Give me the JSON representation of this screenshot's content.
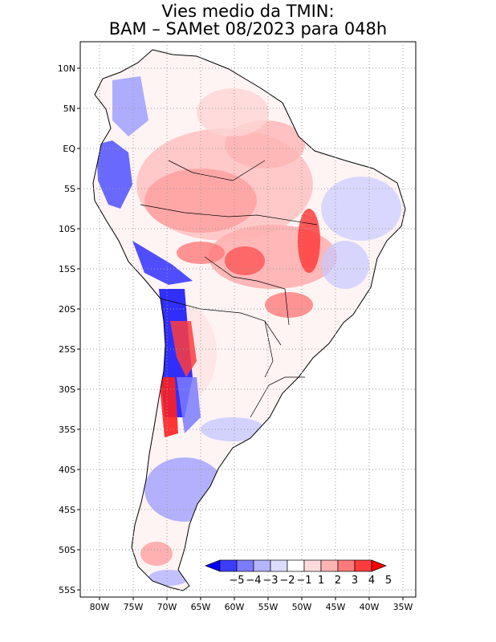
{
  "title": {
    "line1": "Vies medio da TMIN:",
    "line2": "BAM – SAMet 08/2023  para 048h"
  },
  "axes": {
    "lat_labels": [
      "10N",
      "5N",
      "EQ",
      "5S",
      "10S",
      "15S",
      "20S",
      "25S",
      "30S",
      "35S",
      "40S",
      "45S",
      "50S",
      "55S"
    ],
    "lon_labels": [
      "80W",
      "75W",
      "70W",
      "65W",
      "60W",
      "55W",
      "50W",
      "45W",
      "40W",
      "35W"
    ]
  },
  "colorbar": {
    "labels": [
      "−5",
      "−4",
      "−3",
      "−2",
      "−1",
      "1",
      "2",
      "3",
      "4",
      "5"
    ],
    "colors": [
      "#0000ff",
      "#3c3cff",
      "#7b7bff",
      "#b4b4ff",
      "#dcdcff",
      "#ffffff",
      "#ffdcdc",
      "#ffb4b4",
      "#ff7b7b",
      "#ff3c3c",
      "#ff0000"
    ]
  },
  "map": {
    "grid": "dotted",
    "region": "South America",
    "field": "TMIN bias"
  }
}
